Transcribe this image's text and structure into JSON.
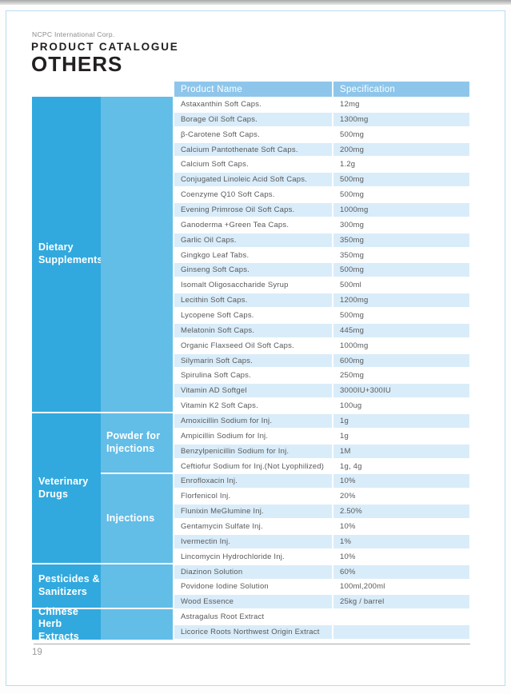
{
  "header": {
    "company": "NCPC International Corp.",
    "catalogue_title": "PRODUCT CATALOGUE",
    "section_title": "OTHERS"
  },
  "table": {
    "column_headers": {
      "product": "Product Name",
      "spec": "Specification"
    }
  },
  "categories": [
    {
      "label": "Dietary Supplements",
      "sub": []
    },
    {
      "label": "Veterinary Drugs",
      "sub": [
        "Powder for Injections",
        "Injections"
      ]
    },
    {
      "label": "Pesticides & Sanitizers",
      "sub": []
    },
    {
      "label": "Chinese Herb Extracts",
      "sub": []
    }
  ],
  "rows": [
    {
      "product": "Astaxanthin Soft Caps.",
      "spec": "12mg"
    },
    {
      "product": "Borage Oil Soft Caps.",
      "spec": "1300mg"
    },
    {
      "product": "β-Carotene Soft Caps.",
      "spec": "500mg"
    },
    {
      "product": "Calcium Pantothenate Soft Caps.",
      "spec": "200mg"
    },
    {
      "product": "Calcium Soft Caps.",
      "spec": "1.2g"
    },
    {
      "product": "Conjugated Linoleic Acid Soft Caps.",
      "spec": "500mg"
    },
    {
      "product": "Coenzyme Q10 Soft Caps.",
      "spec": "500mg"
    },
    {
      "product": "Evening Primrose Oil Soft Caps.",
      "spec": "1000mg"
    },
    {
      "product": "Ganoderma +Green Tea Caps.",
      "spec": "300mg"
    },
    {
      "product": "Garlic Oil Caps.",
      "spec": "350mg"
    },
    {
      "product": "Gingkgo Leaf Tabs.",
      "spec": "350mg"
    },
    {
      "product": "Ginseng Soft Caps.",
      "spec": "500mg"
    },
    {
      "product": "Isomalt Oligosaccharide Syrup",
      "spec": "500ml"
    },
    {
      "product": "Lecithin Soft Caps.",
      "spec": "1200mg"
    },
    {
      "product": "Lycopene Soft Caps.",
      "spec": "500mg"
    },
    {
      "product": "Melatonin Soft Caps.",
      "spec": "445mg"
    },
    {
      "product": "Organic Flaxseed Oil Soft Caps.",
      "spec": "1000mg"
    },
    {
      "product": "Silymarin Soft Caps.",
      "spec": "600mg"
    },
    {
      "product": "Spirulina Soft Caps.",
      "spec": "250mg"
    },
    {
      "product": "Vitamin AD Softgel",
      "spec": "3000IU+300IU"
    },
    {
      "product": "Vitamin K2 Soft Caps.",
      "spec": "100ug"
    },
    {
      "product": "Amoxicillin Sodium for Inj.",
      "spec": "1g"
    },
    {
      "product": "Ampicillin Sodium for Inj.",
      "spec": "1g"
    },
    {
      "product": "Benzylpenicillin Sodium for Inj.",
      "spec": "1M"
    },
    {
      "product": "Ceftiofur Sodium for Inj.(Not Lyophilized)",
      "spec": "1g, 4g"
    },
    {
      "product": "Enrofloxacin Inj.",
      "spec": "10%"
    },
    {
      "product": "Florfenicol  Inj.",
      "spec": "20%"
    },
    {
      "product": "Flunixin MeGlumine Inj.",
      "spec": "2.50%"
    },
    {
      "product": "Gentamycin Sulfate Inj.",
      "spec": "10%"
    },
    {
      "product": "Ivermectin Inj.",
      "spec": "1%"
    },
    {
      "product": "Lincomycin Hydrochloride Inj.",
      "spec": "10%"
    },
    {
      "product": "Diazinon Solution",
      "spec": "60%"
    },
    {
      "product": "Povidone Iodine Solution",
      "spec": "100ml,200ml"
    },
    {
      "product": "Wood Essence",
      "spec": "25kg / barrel"
    },
    {
      "product": "Astragalus Root Extract",
      "spec": ""
    },
    {
      "product": "Licorice Roots Northwest Origin Extract",
      "spec": ""
    }
  ],
  "footer": {
    "page_number": "19"
  },
  "colors": {
    "category_dark": "#31a9de",
    "category_light": "#62bde7",
    "table_header": "#8ec6eb",
    "row_stripe": "#d9ecf9",
    "text": "#58595b"
  }
}
